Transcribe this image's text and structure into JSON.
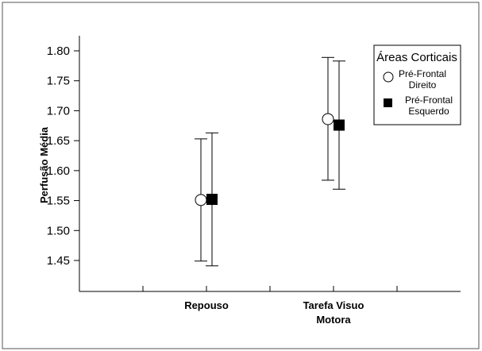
{
  "chart_data": {
    "type": "scatter",
    "title": "",
    "ylabel": "Perfusão Média",
    "xlabel": "",
    "ylim": [
      1.4,
      1.8
    ],
    "yticks": [
      1.45,
      1.5,
      1.55,
      1.6,
      1.65,
      1.7,
      1.75,
      1.8
    ],
    "ytick_labels": [
      "1.45",
      "1.50",
      "1.55",
      "1.60",
      "1.65",
      "1.70",
      "1.75",
      "1.80"
    ],
    "categories": [
      {
        "line1": "Repouso",
        "line2": ""
      },
      {
        "line1": "Tarefa Visuo",
        "line2": "Motora"
      }
    ],
    "legend": {
      "title": "Áreas Corticais",
      "placement": "top-right"
    },
    "series": [
      {
        "name_line1": "Pré-Frontal",
        "name_line2": "Direito",
        "marker": "circle-open",
        "values": [
          1.551,
          1.686
        ],
        "upper": [
          1.653,
          1.789
        ],
        "lower": [
          1.449,
          1.584
        ]
      },
      {
        "name_line1": "Pré-Frontal",
        "name_line2": "Esquerdo",
        "marker": "square-filled",
        "values": [
          1.552,
          1.676
        ],
        "upper": [
          1.663,
          1.783
        ],
        "lower": [
          1.441,
          1.569
        ]
      }
    ],
    "grid": false
  }
}
